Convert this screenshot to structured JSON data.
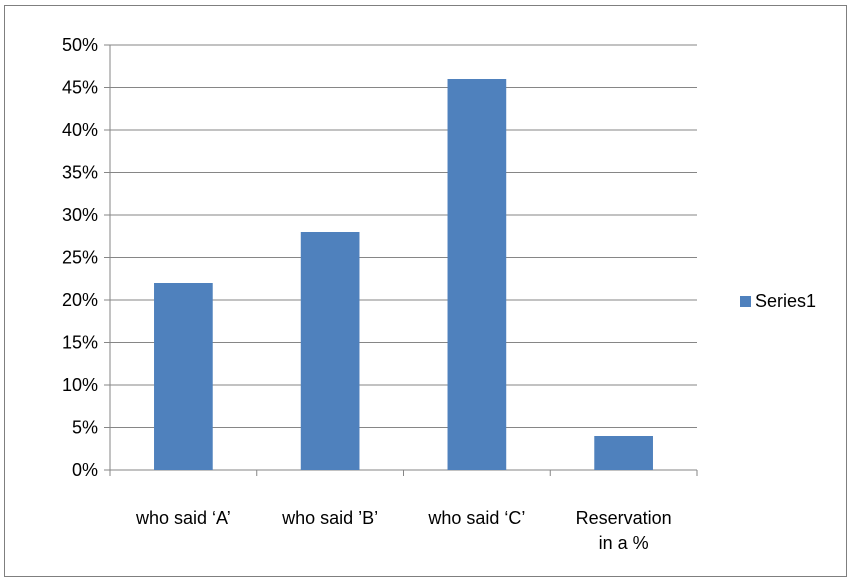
{
  "chart_data": {
    "type": "bar",
    "categories": [
      [
        "who said ‘A’"
      ],
      [
        "who said ’B’"
      ],
      [
        "who said ‘C’"
      ],
      [
        "Reservation",
        "in a %"
      ]
    ],
    "series": [
      {
        "name": "Series1",
        "values": [
          22,
          28,
          46,
          4
        ],
        "color": "#4f81bd"
      }
    ],
    "y_ticks": [
      "0%",
      "5%",
      "10%",
      "15%",
      "20%",
      "25%",
      "30%",
      "35%",
      "40%",
      "45%",
      "50%"
    ],
    "ylim": [
      0,
      50
    ],
    "y_unit": "%",
    "grid": true,
    "legend_position": "right",
    "title": "",
    "xlabel": "",
    "ylabel": ""
  }
}
